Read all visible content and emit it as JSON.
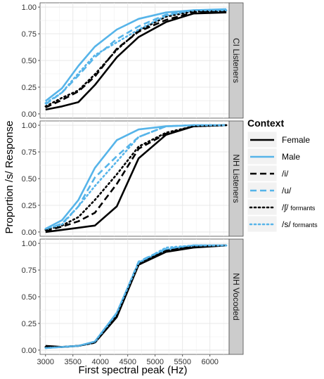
{
  "chart_data": {
    "type": "line",
    "xlabel": "First spectral peak (Hz)",
    "ylabel": "Proportion /s/ Response",
    "xlim": [
      2900,
      6350
    ],
    "ylim": [
      -0.04,
      1.04
    ],
    "x_ticks": [
      3000,
      3500,
      4000,
      4500,
      5000,
      5500,
      6000
    ],
    "y_ticks": [
      "0.00",
      "0.25",
      "0.50",
      "0.75",
      "1.00"
    ],
    "grid": true,
    "legend_position": "right",
    "legend": {
      "title": "Context",
      "items": [
        {
          "key": "female",
          "label": "Female",
          "suffix": "",
          "color": "#000000",
          "dash": "solid"
        },
        {
          "key": "male",
          "label": "Male",
          "suffix": "",
          "color": "#56B4E9",
          "dash": "solid"
        },
        {
          "key": "i",
          "label": "/i/",
          "suffix": "",
          "color": "#000000",
          "dash": "dashed"
        },
        {
          "key": "u",
          "label": "/u/",
          "suffix": "",
          "color": "#56B4E9",
          "dash": "dashed"
        },
        {
          "key": "sh_formants",
          "label": "/ʃ/",
          "suffix": "formants",
          "color": "#000000",
          "dash": "dotted"
        },
        {
          "key": "s_formants",
          "label": "/s/",
          "suffix": "formants",
          "color": "#56B4E9",
          "dash": "dotted"
        }
      ]
    },
    "x": [
      3000,
      3300,
      3600,
      3900,
      4300,
      4700,
      5200,
      5700,
      6300
    ],
    "panels": [
      {
        "strip": "CI Listeners",
        "series": [
          {
            "key": "female",
            "values": [
              0.04,
              0.07,
              0.11,
              0.27,
              0.53,
              0.72,
              0.86,
              0.94,
              0.95
            ]
          },
          {
            "key": "male",
            "values": [
              0.12,
              0.24,
              0.45,
              0.63,
              0.79,
              0.89,
              0.95,
              0.97,
              0.98
            ]
          },
          {
            "key": "i",
            "values": [
              0.06,
              0.13,
              0.21,
              0.35,
              0.61,
              0.77,
              0.88,
              0.95,
              0.96
            ]
          },
          {
            "key": "u",
            "values": [
              0.09,
              0.2,
              0.36,
              0.53,
              0.7,
              0.82,
              0.93,
              0.97,
              0.97
            ]
          },
          {
            "key": "sh_formants",
            "values": [
              0.07,
              0.15,
              0.22,
              0.37,
              0.6,
              0.78,
              0.91,
              0.96,
              0.96
            ]
          },
          {
            "key": "s_formants",
            "values": [
              0.1,
              0.2,
              0.38,
              0.55,
              0.67,
              0.79,
              0.92,
              0.97,
              0.97
            ]
          }
        ]
      },
      {
        "strip": "NH Listeners",
        "series": [
          {
            "key": "female",
            "values": [
              0.0,
              0.02,
              0.04,
              0.06,
              0.24,
              0.69,
              0.91,
              0.99,
              1.0
            ]
          },
          {
            "key": "male",
            "values": [
              0.03,
              0.11,
              0.3,
              0.6,
              0.86,
              0.96,
              0.99,
              1.0,
              1.0
            ]
          },
          {
            "key": "i",
            "values": [
              0.01,
              0.05,
              0.1,
              0.18,
              0.45,
              0.78,
              0.92,
              0.99,
              1.0
            ]
          },
          {
            "key": "u",
            "values": [
              0.02,
              0.08,
              0.24,
              0.51,
              0.71,
              0.89,
              0.99,
              1.0,
              1.0
            ]
          },
          {
            "key": "sh_formants",
            "values": [
              0.02,
              0.06,
              0.14,
              0.3,
              0.54,
              0.8,
              0.93,
              0.99,
              1.0
            ]
          },
          {
            "key": "s_formants",
            "values": [
              0.03,
              0.07,
              0.24,
              0.43,
              0.66,
              0.89,
              0.99,
              1.0,
              1.0
            ]
          }
        ]
      },
      {
        "strip": "NH Vocoded",
        "series": [
          {
            "key": "female",
            "values": [
              0.04,
              0.03,
              0.04,
              0.07,
              0.31,
              0.8,
              0.92,
              0.96,
              0.98
            ]
          },
          {
            "key": "male",
            "values": [
              0.02,
              0.03,
              0.04,
              0.08,
              0.35,
              0.82,
              0.94,
              0.98,
              0.98
            ]
          },
          {
            "key": "i",
            "values": [
              0.03,
              0.03,
              0.04,
              0.07,
              0.33,
              0.8,
              0.93,
              0.97,
              0.98
            ]
          },
          {
            "key": "u",
            "values": [
              0.02,
              0.03,
              0.04,
              0.07,
              0.34,
              0.83,
              0.95,
              0.98,
              0.98
            ]
          },
          {
            "key": "sh_formants",
            "values": [
              0.03,
              0.03,
              0.04,
              0.07,
              0.32,
              0.81,
              0.93,
              0.97,
              0.98
            ]
          },
          {
            "key": "s_formants",
            "values": [
              0.02,
              0.03,
              0.04,
              0.08,
              0.35,
              0.82,
              0.96,
              0.98,
              0.98
            ]
          }
        ]
      }
    ]
  }
}
